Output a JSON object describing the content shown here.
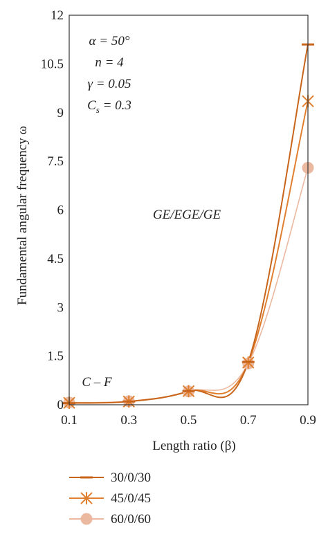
{
  "chart_data": {
    "type": "line",
    "x": [
      0.1,
      0.3,
      0.5,
      0.7,
      0.9
    ],
    "x_ticks": [
      "0.1",
      "0.3",
      "0.5",
      "0.7",
      "0.9"
    ],
    "y_ticks": [
      "0",
      "1.5",
      "3",
      "4.5",
      "6",
      "7.5",
      "9",
      "10.5",
      "12"
    ],
    "xlim": [
      0.1,
      0.9
    ],
    "ylim": [
      0,
      12
    ],
    "xlabel": "Length ratio (β)",
    "ylabel": "Fundamental angular frequency ω",
    "grid": false,
    "legend_position": "bottom",
    "series": [
      {
        "name": "30/0/30",
        "values": [
          0.05,
          0.1,
          0.42,
          1.32,
          11.1
        ],
        "color": "#c8651b",
        "marker": "dash"
      },
      {
        "name": "45/0/45",
        "values": [
          0.06,
          0.1,
          0.42,
          1.3,
          9.35
        ],
        "color": "#e07f2f",
        "marker": "asterisk"
      },
      {
        "name": "60/0/60",
        "values": [
          0.07,
          0.11,
          0.41,
          1.27,
          7.3
        ],
        "color": "#ebb8a0",
        "marker": "circle"
      }
    ],
    "annotations": {
      "params": [
        "α = 50°",
        "n = 4",
        "γ = 0.05",
        "C",
        "s",
        " = 0.3"
      ],
      "label_center": "GE/EGE/GE",
      "label_bc": "C – F"
    }
  }
}
